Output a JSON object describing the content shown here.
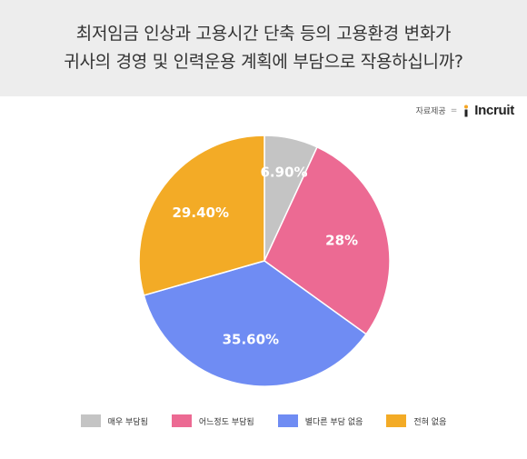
{
  "header": {
    "title_line1": "최저임금 인상과 고용시간 단축 등의 고용환경 변화가",
    "title_line2": "귀사의 경영 및 인력운용 계획에 부담으로 작용하십니까?"
  },
  "source": {
    "label": "자료제공",
    "separator": "=",
    "logo_text": "Incruit"
  },
  "colors": {
    "header_bg": "#ededed",
    "logo_accent": "#f5a623"
  },
  "chart_data": {
    "type": "pie",
    "title": "최저임금 인상과 고용시간 단축 등의 고용환경 변화가 귀사의 경영 및 인력운용 계획에 부담으로 작용하십니까?",
    "legend_position": "bottom",
    "slices": [
      {
        "label": "매우 부담됨",
        "value": 6.9,
        "display": "6.90%",
        "color": "#c4c4c4"
      },
      {
        "label": "어느정도 부담됨",
        "value": 28,
        "display": "28%",
        "color": "#ec6a93"
      },
      {
        "label": "별다른 부담 없음",
        "value": 35.6,
        "display": "35.60%",
        "color": "#6f8cf3"
      },
      {
        "label": "전혀 없음",
        "value": 29.4,
        "display": "29.40%",
        "color": "#f3ab26"
      }
    ]
  }
}
